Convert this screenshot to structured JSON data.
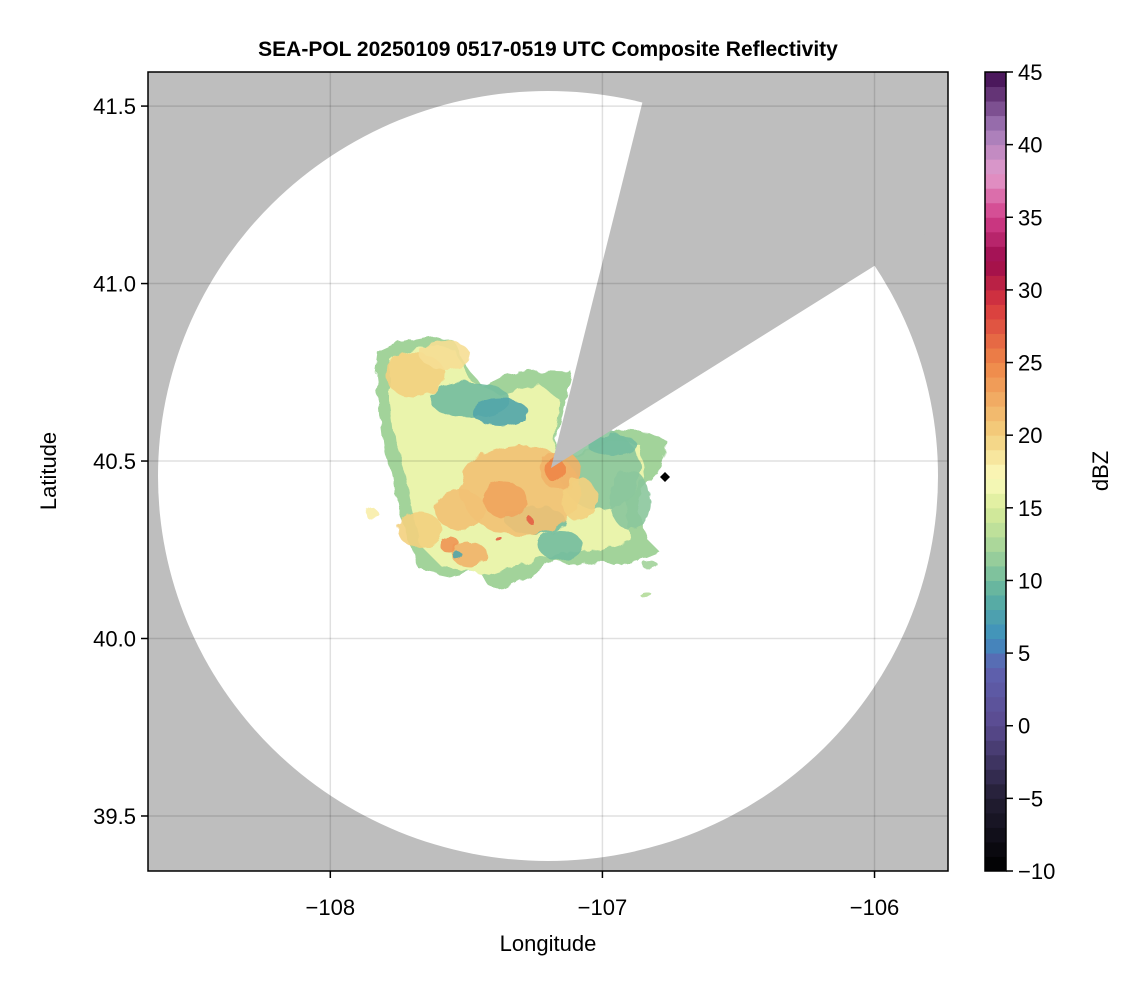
{
  "chart_data": {
    "type": "heatmap",
    "title": "SEA-POL 20250109 0517-0519 UTC Composite Reflectivity",
    "xlabel": "Longitude",
    "ylabel": "Latitude",
    "xlim": [
      -108.67,
      -105.73
    ],
    "ylim": [
      39.345,
      41.596
    ],
    "xticks": [
      -108,
      -107,
      -106
    ],
    "xtick_labels": [
      "−108",
      "−107",
      "−106"
    ],
    "yticks": [
      39.5,
      40.0,
      40.5,
      41.0,
      41.5
    ],
    "ytick_labels": [
      "39.5",
      "40.0",
      "40.5",
      "41.0",
      "41.5"
    ],
    "grid": true,
    "background_color": "#bebebe",
    "radar": {
      "center_lon": -107.19,
      "center_lat": 40.48,
      "blocked_sector_deg": [
        15,
        54
      ],
      "coverage_color": "#ffffff"
    },
    "marker": {
      "lon": -106.77,
      "lat": 40.455,
      "shape": "diamond",
      "color": "#000000"
    },
    "colorbar": {
      "label": "dBZ",
      "range": [
        -10,
        45
      ],
      "step": 1,
      "ticks": [
        -10,
        -5,
        0,
        5,
        10,
        15,
        20,
        25,
        30,
        35,
        40,
        45
      ],
      "tick_labels": [
        "−10",
        "−5",
        "0",
        "5",
        "10",
        "15",
        "20",
        "25",
        "30",
        "35",
        "40",
        "45"
      ],
      "colormap_stops": [
        [
          -10,
          "#000000"
        ],
        [
          -5,
          "#221e33"
        ],
        [
          0,
          "#5a4a8f"
        ],
        [
          4,
          "#5f62b0"
        ],
        [
          6,
          "#3e8fbe"
        ],
        [
          9,
          "#5cb0a0"
        ],
        [
          12,
          "#a2d39a"
        ],
        [
          15,
          "#d9ec9a"
        ],
        [
          17,
          "#fbfbbd"
        ],
        [
          20,
          "#f3d07e"
        ],
        [
          25,
          "#ee8648"
        ],
        [
          29,
          "#d8383e"
        ],
        [
          32,
          "#9c0a4c"
        ],
        [
          35,
          "#d23f8a"
        ],
        [
          38,
          "#e39ccc"
        ],
        [
          41,
          "#a27ab8"
        ],
        [
          45,
          "#3e0a4f"
        ]
      ]
    }
  }
}
